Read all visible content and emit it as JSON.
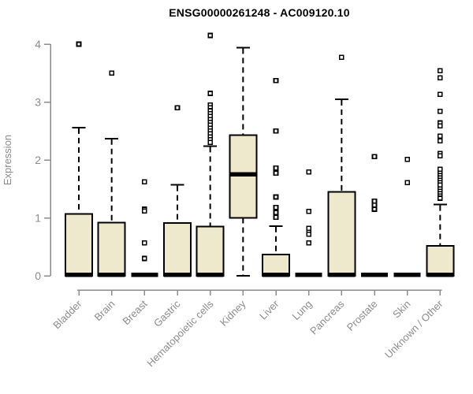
{
  "title": "ENSG00000261248 - AC009120.10",
  "colors": {
    "box_fill": "#EEE8CD",
    "box_border": "#000000",
    "median": "#000000",
    "outlier_stroke": "#000000",
    "outlier_fill": "#FFFFFF",
    "axis": "#8C8C8C",
    "tick_label": "#8C8C8C",
    "title_text": "#000000",
    "background": "#FFFFFF"
  },
  "chart_data": {
    "type": "boxplot",
    "title": "ENSG00000261248 - AC009120.10",
    "xlabel": "",
    "ylabel": "Expression",
    "ylim": [
      0,
      4.15
    ],
    "y_ticks": [
      0,
      1,
      2,
      3,
      4
    ],
    "grid": false,
    "legend": "none",
    "whisker_style": "dashed",
    "categories": [
      "Bladder",
      "Brain",
      "Breast",
      "Gastric",
      "Hematopoietic cells",
      "Kidney",
      "Liver",
      "Lung",
      "Pancreas",
      "Prostate",
      "Skin",
      "Unknown / Other"
    ],
    "series": [
      {
        "name": "Bladder",
        "low": 0,
        "q1": 0,
        "median": 0.02,
        "q3": 1.07,
        "high": 2.56,
        "outliers": [
          4.0
        ]
      },
      {
        "name": "Brain",
        "low": 0,
        "q1": 0,
        "median": 0.02,
        "q3": 0.92,
        "high": 2.37,
        "outliers": [
          3.5
        ]
      },
      {
        "name": "Breast",
        "low": 0,
        "q1": 0,
        "median": 0.02,
        "q3": 0,
        "high": 0,
        "outliers": [
          1.62,
          1.15,
          1.12,
          0.57,
          0.3
        ]
      },
      {
        "name": "Gastric",
        "low": 0,
        "q1": 0,
        "median": 0.02,
        "q3": 0.91,
        "high": 1.57,
        "outliers": [
          2.9
        ]
      },
      {
        "name": "Hematopoietic cells",
        "low": 0,
        "q1": 0,
        "median": 0.02,
        "q3": 0.85,
        "high": 2.24,
        "outliers": [
          4.15,
          3.15,
          2.95,
          2.9,
          2.85,
          2.8,
          2.75,
          2.7,
          2.65,
          2.6,
          2.55,
          2.5,
          2.45,
          2.4,
          2.35,
          2.3
        ]
      },
      {
        "name": "Kidney",
        "low": 0,
        "q1": 1.0,
        "median": 1.75,
        "q3": 2.43,
        "high": 3.94,
        "outliers": []
      },
      {
        "name": "Liver",
        "low": 0,
        "q1": 0,
        "median": 0.02,
        "q3": 0.37,
        "high": 0.86,
        "outliers": [
          3.37,
          2.5,
          1.86,
          1.77,
          1.36,
          1.18,
          1.09,
          1.01
        ]
      },
      {
        "name": "Lung",
        "low": 0,
        "q1": 0,
        "median": 0.02,
        "q3": 0,
        "high": 0,
        "outliers": [
          1.79,
          1.11,
          0.82,
          0.75,
          0.72,
          0.57
        ]
      },
      {
        "name": "Pancreas",
        "low": 0,
        "q1": 0,
        "median": 0.02,
        "q3": 1.45,
        "high": 3.05,
        "outliers": [
          3.77
        ]
      },
      {
        "name": "Prostate",
        "low": 0,
        "q1": 0,
        "median": 0.02,
        "q3": 0,
        "high": 0,
        "outliers": [
          2.06,
          1.29,
          1.22,
          1.15
        ]
      },
      {
        "name": "Skin",
        "low": 0,
        "q1": 0,
        "median": 0.02,
        "q3": 0,
        "high": 0,
        "outliers": [
          2.01,
          1.61
        ]
      },
      {
        "name": "Unknown / Other",
        "low": 0,
        "q1": 0,
        "median": 0.02,
        "q3": 0.52,
        "high": 1.23,
        "outliers": [
          3.54,
          3.42,
          3.13,
          2.84,
          2.64,
          2.59,
          2.41,
          2.33,
          2.11,
          2.07,
          1.84,
          1.77,
          1.73,
          1.69,
          1.65,
          1.61,
          1.57,
          1.5,
          1.46,
          1.42,
          1.38,
          1.34
        ]
      }
    ]
  }
}
